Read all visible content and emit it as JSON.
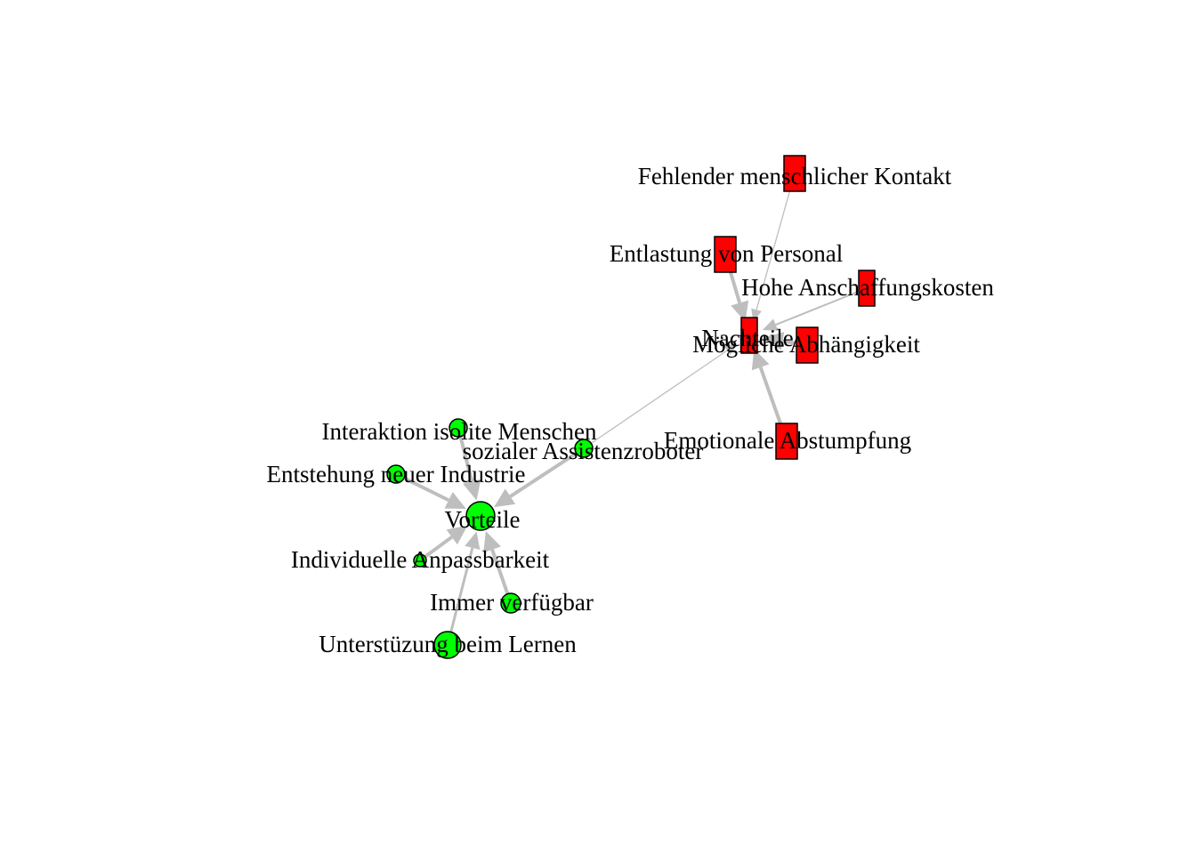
{
  "nodes": [
    {
      "id": "fehlender",
      "label": "Fehlender menschlicher Kontakt",
      "group": "nachteil",
      "shape": "rect"
    },
    {
      "id": "entlastung",
      "label": "Entlastung von Personal",
      "group": "nachteil",
      "shape": "rect"
    },
    {
      "id": "hohe",
      "label": "Hohe Anschaffungskosten",
      "group": "nachteil",
      "shape": "rect"
    },
    {
      "id": "nachteile",
      "label": "Nachteile",
      "group": "nachteil",
      "shape": "rect"
    },
    {
      "id": "moegliche",
      "label": "Mögliche Abhängigkeit",
      "group": "nachteil",
      "shape": "rect"
    },
    {
      "id": "emotionale",
      "label": "Emotionale Abstumpfung",
      "group": "nachteil",
      "shape": "rect"
    },
    {
      "id": "interaktion",
      "label": "Interaktion isolite Menschen",
      "group": "vorteil",
      "shape": "circle"
    },
    {
      "id": "sozialer",
      "label": "sozialer Assistenzroboter",
      "group": "vorteil",
      "shape": "circle"
    },
    {
      "id": "entstehung",
      "label": "Entstehung neuer Industrie",
      "group": "vorteil",
      "shape": "circle"
    },
    {
      "id": "vorteile",
      "label": "Vorteile",
      "group": "vorteil",
      "shape": "circle"
    },
    {
      "id": "individuelle",
      "label": "Individuelle Anpassbarkeit",
      "group": "vorteil",
      "shape": "circle"
    },
    {
      "id": "immer",
      "label": "Immer verfügbar",
      "group": "vorteil",
      "shape": "circle"
    },
    {
      "id": "unterstuezung",
      "label": "Unterstüzung beim Lernen",
      "group": "vorteil",
      "shape": "circle"
    }
  ],
  "edges": [
    {
      "from": "fehlender",
      "to": "nachteile"
    },
    {
      "from": "entlastung",
      "to": "nachteile"
    },
    {
      "from": "hohe",
      "to": "nachteile"
    },
    {
      "from": "moegliche",
      "to": "nachteile"
    },
    {
      "from": "emotionale",
      "to": "nachteile"
    },
    {
      "from": "sozialer",
      "to": "nachteile"
    },
    {
      "from": "sozialer",
      "to": "vorteile"
    },
    {
      "from": "interaktion",
      "to": "vorteile"
    },
    {
      "from": "entstehung",
      "to": "vorteile"
    },
    {
      "from": "individuelle",
      "to": "vorteile"
    },
    {
      "from": "immer",
      "to": "vorteile"
    },
    {
      "from": "unterstuezung",
      "to": "vorteile"
    }
  ],
  "colors": {
    "nachteil": "#ff0000",
    "vorteil": "#00ff00",
    "edge": "#bebebe",
    "outline": "#000000"
  }
}
